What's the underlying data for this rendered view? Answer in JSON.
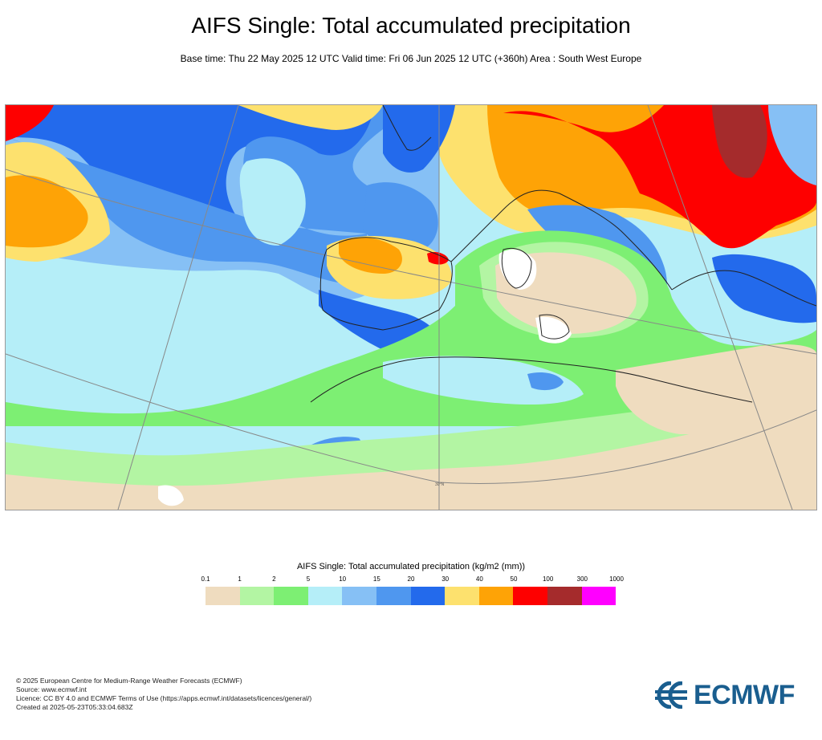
{
  "header": {
    "title": "AIFS Single: Total accumulated precipitation",
    "subtitle": "Base time: Thu 22 May 2025 12 UTC Valid time: Fri 06 Jun 2025 12 UTC (+360h) Area : South West Europe"
  },
  "map": {
    "lat_label": "30°N",
    "colors": {
      "0.1-1": "#efdcbf",
      "1-2": "#b3f5a3",
      "2-5": "#7def73",
      "5-10": "#b5eef8",
      "10-15": "#86c0f5",
      "15-20": "#4f97ef",
      "20-30": "#236aec",
      "30-40": "#fde16e",
      "40-50": "#fea306",
      "50-100": "#fe0000",
      "100-300": "#a52b2c",
      "300-1000": "#ff00ff"
    }
  },
  "legend": {
    "title": "AIFS Single: Total accumulated precipitation (kg/m2 (mm))",
    "ticks": [
      "0.1",
      "1",
      "2",
      "5",
      "10",
      "15",
      "20",
      "30",
      "40",
      "50",
      "100",
      "300",
      "1000"
    ],
    "swatches": [
      "#efdcbf",
      "#b3f5a3",
      "#7def73",
      "#b5eef8",
      "#86c0f5",
      "#4f97ef",
      "#236aec",
      "#fde16e",
      "#fea306",
      "#fe0000",
      "#a52b2c",
      "#ff00ff"
    ]
  },
  "footer": {
    "line1": "© 2025 European Centre for Medium-Range Weather Forecasts (ECMWF)",
    "line2": "Source: www.ecmwf.int",
    "line3": "Licence: CC BY 4.0 and ECMWF Terms of Use (https://apps.ecmwf.int/datasets/licences/general/)",
    "line4": "Created at 2025-05-23T05:33:04.683Z"
  },
  "logo": {
    "text": "ECMWF",
    "icon": "ecmwf-logo-icon"
  }
}
